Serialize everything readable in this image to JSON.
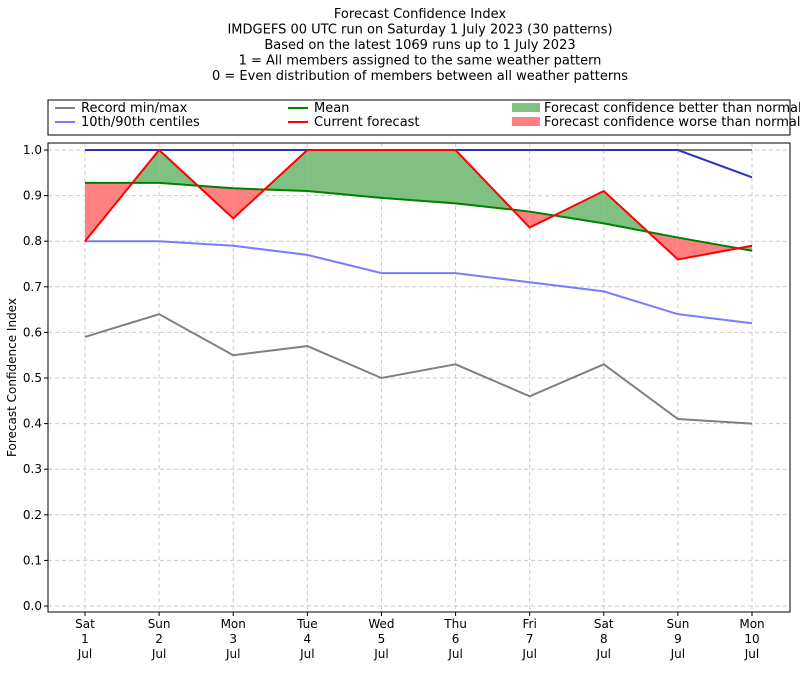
{
  "chart_data": {
    "type": "line",
    "title": [
      "Forecast Confidence Index",
      "IMDGEFS 00 UTC run on Saturday 1 July 2023 (30 patterns)",
      "Based on the latest 1069 runs up to 1 July 2023",
      "1 = All members assigned to the same weather pattern",
      "0 = Even distribution of members between all weather patterns"
    ],
    "ylabel": "Forecast Confidence Index",
    "ylim": [
      -0.01,
      1.01
    ],
    "yticks": [
      "0.0",
      "0.1",
      "0.2",
      "0.3",
      "0.4",
      "0.5",
      "0.6",
      "0.7",
      "0.8",
      "0.9",
      "1.0"
    ],
    "categories": [
      [
        "Sat",
        "1",
        "Jul"
      ],
      [
        "Sun",
        "2",
        "Jul"
      ],
      [
        "Mon",
        "3",
        "Jul"
      ],
      [
        "Tue",
        "4",
        "Jul"
      ],
      [
        "Wed",
        "5",
        "Jul"
      ],
      [
        "Thu",
        "6",
        "Jul"
      ],
      [
        "Fri",
        "7",
        "Jul"
      ],
      [
        "Sat",
        "8",
        "Jul"
      ],
      [
        "Sun",
        "9",
        "Jul"
      ],
      [
        "Mon",
        "10",
        "Jul"
      ]
    ],
    "grid": true,
    "legend_position": "top",
    "series": [
      {
        "name": "Record min/max",
        "color": "#808080",
        "min": [
          0.59,
          0.64,
          0.55,
          0.57,
          0.5,
          0.53,
          0.46,
          0.53,
          0.41,
          0.4
        ],
        "max": [
          1,
          1,
          1,
          1,
          1,
          1,
          1,
          1,
          1,
          1
        ]
      },
      {
        "name": "10th/90th centiles",
        "color": "#7b7bff",
        "min": [
          0.8,
          0.8,
          0.79,
          0.77,
          0.73,
          0.73,
          0.71,
          0.69,
          0.64,
          0.62
        ],
        "max": [
          1,
          1,
          1,
          1,
          1,
          1,
          1,
          1,
          1,
          0.94
        ]
      },
      {
        "name": "Mean",
        "color": "#008000",
        "values": [
          0.928,
          0.928,
          0.916,
          0.91,
          0.895,
          0.883,
          0.865,
          0.839,
          0.808,
          0.779
        ]
      },
      {
        "name": "Current forecast",
        "color": "#ff0000",
        "values": [
          0.8,
          1.0,
          0.85,
          1.0,
          1.0,
          1.0,
          0.83,
          0.91,
          0.76,
          0.79
        ]
      }
    ],
    "fills": [
      {
        "name": "Forecast confidence better than normal",
        "color": "#80c080"
      },
      {
        "name": "Forecast confidence worse than normal",
        "color": "#ff8080"
      }
    ]
  }
}
